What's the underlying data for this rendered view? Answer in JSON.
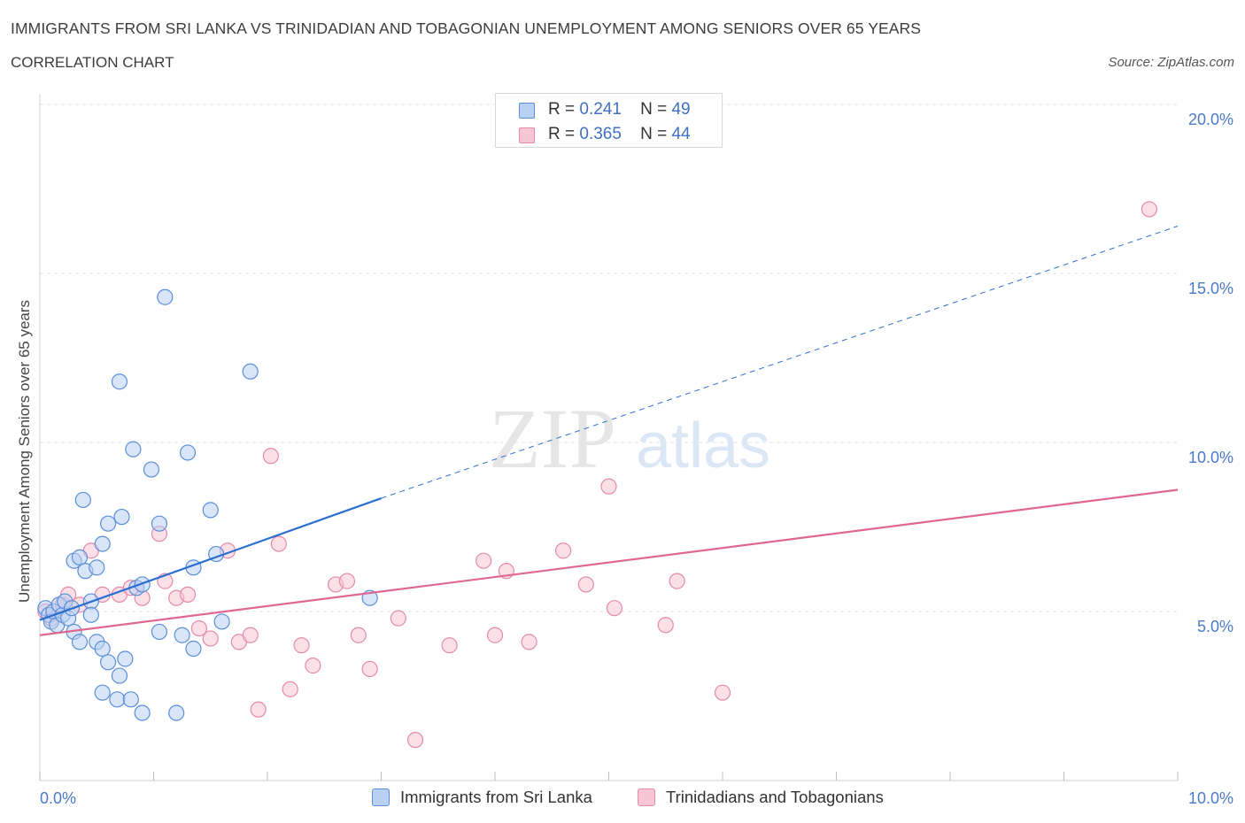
{
  "title": "IMMIGRANTS FROM SRI LANKA VS TRINIDADIAN AND TOBAGONIAN UNEMPLOYMENT AMONG SENIORS OVER 65 YEARS",
  "subtitle": "CORRELATION CHART",
  "source": "Source: ZipAtlas.com",
  "watermark": {
    "zip": "ZIP",
    "atlas": "atlas"
  },
  "legend": {
    "series1": {
      "r_label": "R =",
      "r_value": "0.241",
      "n_label": "N =",
      "n_value": "49"
    },
    "series2": {
      "r_label": "R =",
      "r_value": "0.365",
      "n_label": "N =",
      "n_value": "44"
    }
  },
  "colors": {
    "series1_fill": "#b9d0f3",
    "series1_stroke": "#5b8fd8",
    "series1_line": "#2b6fd1",
    "series2_fill": "#f7c6d5",
    "series2_stroke": "#e58aa8",
    "series2_line": "#e0688f",
    "tick_color": "#4a7ac8",
    "grid": "#e3e3e3"
  },
  "chart_data": {
    "type": "scatter",
    "ylabel": "Unemployment Among Seniors over 65 years",
    "xlim": [
      0,
      10
    ],
    "ylim": [
      0,
      20
    ],
    "x_tick_labels": [
      {
        "value": 0,
        "label": "0.0%"
      },
      {
        "value": 10,
        "label": "10.0%"
      }
    ],
    "y_tick_labels": [
      {
        "value": 5,
        "label": "5.0%"
      },
      {
        "value": 10,
        "label": "10.0%"
      },
      {
        "value": 15,
        "label": "15.0%"
      },
      {
        "value": 20,
        "label": "20.0%"
      }
    ],
    "grid": true,
    "series": [
      {
        "name": "Immigrants from Sri Lanka",
        "trend": {
          "x0": 0,
          "y0": 4.75,
          "x1": 3.0,
          "y1": 8.35,
          "dashed_to_x": 10.0,
          "dashed_to_y": 16.4
        },
        "points": [
          [
            0.05,
            5.1
          ],
          [
            0.08,
            4.9
          ],
          [
            0.1,
            4.7
          ],
          [
            0.12,
            5.0
          ],
          [
            0.15,
            4.6
          ],
          [
            0.17,
            5.2
          ],
          [
            0.2,
            4.9
          ],
          [
            0.22,
            5.3
          ],
          [
            0.25,
            4.8
          ],
          [
            0.28,
            5.1
          ],
          [
            0.3,
            4.4
          ],
          [
            0.35,
            4.1
          ],
          [
            0.3,
            6.5
          ],
          [
            0.35,
            6.6
          ],
          [
            0.4,
            6.2
          ],
          [
            0.45,
            5.3
          ],
          [
            0.45,
            4.9
          ],
          [
            0.5,
            4.1
          ],
          [
            0.5,
            6.3
          ],
          [
            0.38,
            8.3
          ],
          [
            0.55,
            3.9
          ],
          [
            0.55,
            7.0
          ],
          [
            0.6,
            7.6
          ],
          [
            0.6,
            3.5
          ],
          [
            0.7,
            3.1
          ],
          [
            0.75,
            3.6
          ],
          [
            0.55,
            2.6
          ],
          [
            0.68,
            2.4
          ],
          [
            0.8,
            2.4
          ],
          [
            0.9,
            2.0
          ],
          [
            0.72,
            7.8
          ],
          [
            0.85,
            5.7
          ],
          [
            0.82,
            9.8
          ],
          [
            0.7,
            11.8
          ],
          [
            0.98,
            9.2
          ],
          [
            1.05,
            4.4
          ],
          [
            1.05,
            7.6
          ],
          [
            1.1,
            14.3
          ],
          [
            1.2,
            2.0
          ],
          [
            1.25,
            4.3
          ],
          [
            1.3,
            9.7
          ],
          [
            1.35,
            3.9
          ],
          [
            1.35,
            6.3
          ],
          [
            1.5,
            8.0
          ],
          [
            1.55,
            6.7
          ],
          [
            1.6,
            4.7
          ],
          [
            1.85,
            12.1
          ],
          [
            2.9,
            5.4
          ],
          [
            0.9,
            5.8
          ]
        ]
      },
      {
        "name": "Trinidadians and Tobagonians",
        "trend": {
          "x0": 0,
          "y0": 4.3,
          "x1": 10.0,
          "y1": 8.6
        },
        "points": [
          [
            0.05,
            5.0
          ],
          [
            0.1,
            4.8
          ],
          [
            0.2,
            5.2
          ],
          [
            0.25,
            5.5
          ],
          [
            0.35,
            5.2
          ],
          [
            0.45,
            6.8
          ],
          [
            0.55,
            5.5
          ],
          [
            0.7,
            5.5
          ],
          [
            0.8,
            5.7
          ],
          [
            0.9,
            5.4
          ],
          [
            1.05,
            7.3
          ],
          [
            1.1,
            5.9
          ],
          [
            1.2,
            5.4
          ],
          [
            1.3,
            5.5
          ],
          [
            1.4,
            4.5
          ],
          [
            1.5,
            4.2
          ],
          [
            1.65,
            6.8
          ],
          [
            1.75,
            4.1
          ],
          [
            1.85,
            4.3
          ],
          [
            1.92,
            2.1
          ],
          [
            2.03,
            9.6
          ],
          [
            2.1,
            7.0
          ],
          [
            2.2,
            2.7
          ],
          [
            2.3,
            4.0
          ],
          [
            2.4,
            3.4
          ],
          [
            2.6,
            5.8
          ],
          [
            2.7,
            5.9
          ],
          [
            2.8,
            4.3
          ],
          [
            2.9,
            3.3
          ],
          [
            3.15,
            4.8
          ],
          [
            3.3,
            1.2
          ],
          [
            3.6,
            4.0
          ],
          [
            3.9,
            6.5
          ],
          [
            4.0,
            4.3
          ],
          [
            4.1,
            6.2
          ],
          [
            4.3,
            4.1
          ],
          [
            4.6,
            6.8
          ],
          [
            4.8,
            5.8
          ],
          [
            5.0,
            8.7
          ],
          [
            5.05,
            5.1
          ],
          [
            5.5,
            4.6
          ],
          [
            5.6,
            5.9
          ],
          [
            6.0,
            2.6
          ],
          [
            9.75,
            16.9
          ]
        ]
      }
    ]
  },
  "bottom_legend": {
    "series1": "Immigrants from Sri Lanka",
    "series2": "Trinidadians and Tobagonians"
  }
}
